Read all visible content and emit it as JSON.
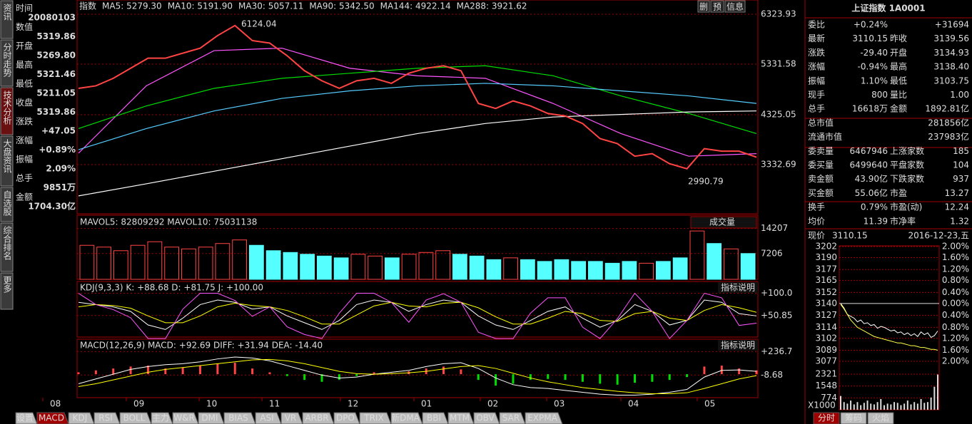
{
  "sidebar_tabs": [
    "资讯",
    "分时走势",
    "技术分析",
    "大盘资讯",
    "自选股",
    "综合排名",
    "更多"
  ],
  "info_column": [
    [
      "时间",
      "20080103"
    ],
    [
      "数值",
      "5319.86"
    ],
    [
      "开盘",
      "5269.80"
    ],
    [
      "最高",
      "5321.46"
    ],
    [
      "最低",
      "5211.05"
    ],
    [
      "收盘",
      "5319.86"
    ],
    [
      "涨跌",
      "+47.05"
    ],
    [
      "涨幅",
      "+0.89%"
    ],
    [
      "振幅",
      "2.09%"
    ],
    [
      "总手",
      "9851万"
    ],
    [
      "金额",
      "1704.30亿"
    ]
  ],
  "price_panel": {
    "header": [
      {
        "text": "指数",
        "color": "#ffffff"
      },
      {
        "text": "MA5: 5279.30",
        "color": "#ffffff"
      },
      {
        "text": "MA10: 5191.90",
        "color": "#ffff00"
      },
      {
        "text": "MA30: 5057.11",
        "color": "#ff55ff"
      },
      {
        "text": "MA90: 5342.50",
        "color": "#00dd00"
      },
      {
        "text": "MA144: 4922.14",
        "color": "#55ccff"
      },
      {
        "text": "MA288: 3921.62",
        "color": "#ffffff"
      }
    ],
    "buttons": [
      "删",
      "预",
      "信息"
    ],
    "ylim": [
      2354,
      6381
    ],
    "yticks": [
      6323.93,
      5331.58,
      4325.05,
      3332.69
    ],
    "high_label": "6124.04",
    "low_label": "2990.79",
    "close": [
      4850,
      4900,
      5050,
      5250,
      5450,
      5450,
      5550,
      5650,
      5900,
      6100,
      5800,
      5750,
      5500,
      5200,
      5000,
      4850,
      5000,
      5050,
      4950,
      5150,
      5250,
      5300,
      5200,
      4550,
      4450,
      4600,
      4500,
      4350,
      4300,
      4150,
      3850,
      3750,
      3500,
      3550,
      3350,
      3250,
      3650,
      3600,
      3600,
      3480
    ],
    "ma_lines": [
      {
        "color": "#ff55ff",
        "values": [
          3560,
          4900,
          5600,
          5650,
          5250,
          5100,
          5050,
          4550,
          3950,
          3500,
          3550
        ]
      },
      {
        "color": "#00dd00",
        "values": [
          4050,
          4500,
          4850,
          5050,
          5150,
          5250,
          5300,
          5100,
          4700,
          4350,
          3950
        ]
      },
      {
        "color": "#55ccff",
        "values": [
          3630,
          4050,
          4400,
          4650,
          4800,
          4900,
          4950,
          4900,
          4800,
          4700,
          4550
        ]
      },
      {
        "color": "#ffffff",
        "values": [
          2710,
          2950,
          3200,
          3450,
          3700,
          3950,
          4150,
          4280,
          4330,
          4380,
          4400
        ]
      }
    ]
  },
  "volume_panel": {
    "header": "MAVOL5: 82809292 MAVOL10: 75031138",
    "dropdown": "成交量",
    "ylim": [
      0,
      17900
    ],
    "yticks": [
      14207,
      7206
    ],
    "values": [
      9500,
      9000,
      8000,
      9500,
      10500,
      9000,
      8500,
      9000,
      10000,
      11000,
      9500,
      8000,
      7500,
      7000,
      6500,
      6000,
      7000,
      6500,
      6000,
      7000,
      7500,
      8000,
      7000,
      6500,
      5500,
      6000,
      5500,
      5000,
      5500,
      5000,
      5000,
      4500,
      5000,
      4500,
      5000,
      6000,
      13500,
      10000,
      8500,
      7200
    ]
  },
  "kdj_panel": {
    "header": "KDJ(9,3,3) K: +88.68 D: +81.75 J: +100.00",
    "button": "指标说明",
    "ylim": [
      3.3,
      126
    ],
    "yticks": [
      {
        "value": 100,
        "label": "+100.0"
      },
      {
        "value": 50.85,
        "label": "+50.85"
      }
    ],
    "series": [
      {
        "color": "#ffffff",
        "values": [
          80,
          75,
          70,
          60,
          30,
          20,
          45,
          75,
          85,
          80,
          65,
          70,
          50,
          35,
          20,
          40,
          75,
          85,
          80,
          60,
          75,
          85,
          80,
          50,
          30,
          20,
          40,
          60,
          70,
          45,
          25,
          40,
          75,
          60,
          30,
          40,
          85,
          80,
          55,
          50
        ]
      },
      {
        "color": "#ffff00",
        "values": [
          70,
          75,
          73,
          67,
          50,
          35,
          35,
          50,
          70,
          78,
          73,
          70,
          62,
          48,
          32,
          32,
          52,
          72,
          80,
          72,
          70,
          78,
          80,
          68,
          48,
          32,
          32,
          45,
          60,
          55,
          40,
          38,
          55,
          60,
          45,
          40,
          62,
          75,
          68,
          58
        ]
      },
      {
        "color": "#ff55ff",
        "values": [
          100,
          75,
          64,
          46,
          0,
          0,
          65,
          100,
          100,
          84,
          49,
          70,
          26,
          9,
          0,
          56,
          100,
          100,
          80,
          36,
          85,
          99,
          80,
          14,
          0,
          0,
          56,
          90,
          90,
          25,
          0,
          44,
          100,
          60,
          0,
          40,
          100,
          90,
          29,
          34
        ]
      }
    ]
  },
  "macd_panel": {
    "header": "MACD(12,26,9) MACD: +92.69 DIFF: +31.94 DEA: -14.40",
    "button": "指标说明",
    "ylim": [
      -246,
      367
    ],
    "yticks": [
      {
        "value": 236.7,
        "label": "+236.7"
      },
      -8.68
    ],
    "macd": [
      20,
      40,
      60,
      80,
      90,
      60,
      70,
      90,
      110,
      120,
      60,
      20,
      -20,
      -60,
      -80,
      -60,
      -20,
      20,
      10,
      30,
      60,
      80,
      50,
      -60,
      -120,
      -100,
      -60,
      -50,
      -60,
      -80,
      -100,
      -110,
      -90,
      -80,
      -60,
      -30,
      80,
      90,
      60,
      40
    ],
    "series": [
      {
        "color": "#ffffff",
        "values": [
          -100,
          -50,
          0,
          50,
          80,
          100,
          110,
          130,
          160,
          180,
          170,
          140,
          90,
          40,
          -10,
          -40,
          -30,
          0,
          20,
          40,
          80,
          110,
          120,
          60,
          -40,
          -110,
          -140,
          -150,
          -170,
          -190,
          -210,
          -220,
          -220,
          -210,
          -190,
          -160,
          -30,
          40,
          45,
          30
        ]
      },
      {
        "color": "#ffff00",
        "values": [
          -130,
          -100,
          -60,
          -20,
          20,
          50,
          70,
          90,
          110,
          130,
          150,
          155,
          140,
          110,
          70,
          30,
          5,
          0,
          5,
          15,
          30,
          55,
          80,
          90,
          60,
          10,
          -40,
          -80,
          -110,
          -140,
          -160,
          -180,
          -195,
          -205,
          -205,
          -195,
          -150,
          -100,
          -50,
          -15
        ]
      }
    ]
  },
  "months": [
    "08",
    "09",
    "10",
    "11",
    "12",
    "01",
    "02",
    "03",
    "04",
    "05"
  ],
  "bottom_tabs": [
    "设置",
    "MACD",
    "KDJ",
    "RSI",
    "BOLL",
    "主力",
    "W&R",
    "DMI",
    "BIAS",
    "ASI",
    "VR",
    "ARBR",
    "DPO",
    "TRIX",
    "新DMA",
    "BBI",
    "MTM",
    "OBV",
    "SAR",
    "EXPMA"
  ],
  "quote": {
    "title": "上证指数 1A0001",
    "rows": [
      [
        "委比",
        "+0.24%",
        "+31694"
      ],
      [
        "最新",
        "3110.15",
        "昨收",
        "3139.56"
      ],
      [
        "涨跌",
        "-29.40",
        "开盘",
        "3134.93"
      ],
      [
        "涨幅",
        "-0.94%",
        "最高",
        "3138.40"
      ],
      [
        "振幅",
        "1.10%",
        "最低",
        "3103.75"
      ],
      [
        "现手",
        "800",
        "量比",
        "1.00"
      ],
      [
        "总手",
        "16618万",
        "金额",
        "1892.81亿"
      ],
      [
        "总市值",
        "281856亿"
      ],
      [
        "流通市值",
        "237983亿"
      ],
      [
        "委卖量",
        "6467946",
        "上涨家数",
        "185"
      ],
      [
        "委买量",
        "6499640",
        "平盘家数",
        "104"
      ],
      [
        "卖金额",
        "43.90亿",
        "下跌家数",
        "937"
      ],
      [
        "买金额",
        "55.06亿",
        "市盈",
        "13.27"
      ],
      [
        "换手",
        "0.79%",
        "市盈(动)",
        "12.24"
      ],
      [
        "均价",
        "11.39",
        "市净率",
        "1.32"
      ]
    ]
  },
  "mini_chart": {
    "price_label": "现价",
    "price": "3110.15",
    "date": "2016-12-23,五",
    "ylim": [
      3077,
      3202
    ],
    "yticks": [
      3202,
      3190,
      3177,
      3165,
      3152,
      3140,
      3127,
      3114,
      3102,
      3089,
      3077
    ],
    "pct_ticks": [
      "2.00%",
      "1.60%",
      "1.20%",
      "0.80%",
      "0.40%",
      "0.00%",
      "0.40%",
      "0.80%",
      "1.20%",
      "1.60%",
      "2.00%"
    ],
    "line": [
      3140,
      3135,
      3128,
      3126,
      3124,
      3120,
      3122,
      3118,
      3119,
      3116,
      3117,
      3113,
      3115,
      3114,
      3112,
      3110,
      3111,
      3108,
      3109,
      3106,
      3108,
      3105,
      3107,
      3104,
      3109,
      3106,
      3108,
      3103,
      3105,
      3110
    ],
    "avg_line": [
      3139,
      3134,
      3128,
      3122,
      3118,
      3114,
      3112,
      3110,
      3108,
      3106,
      3104,
      3103,
      3102,
      3101,
      3100,
      3099,
      3098,
      3097,
      3097,
      3096,
      3095,
      3094,
      3094,
      3093,
      3092,
      3092,
      3091,
      3090,
      3090,
      3089
    ],
    "vol_ylim": [
      0,
      3024
    ],
    "vol_ticks": [
      2321,
      1548,
      774
    ],
    "vol_unit": "X1000",
    "volume": [
      900,
      500,
      400,
      600,
      350,
      500,
      300,
      450,
      600,
      400,
      350,
      500,
      700,
      300,
      400,
      350,
      500,
      450,
      300,
      400,
      600,
      350,
      500,
      400,
      700,
      450,
      500,
      800,
      1500,
      2300
    ],
    "tabs": [
      "分时",
      "筹码",
      "火焰"
    ]
  }
}
